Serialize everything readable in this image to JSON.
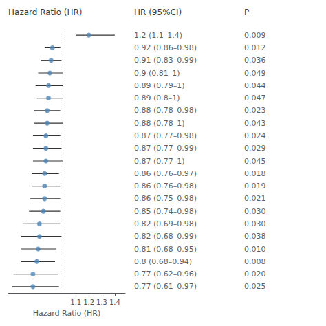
{
  "chart_data": {
    "type": "forest",
    "title": "Hazard Ratio (HR)",
    "x_label": "Hazard Ratio (HR)",
    "values": [
      1.2,
      0.92,
      0.91,
      0.9,
      0.89,
      0.89,
      0.88,
      0.88,
      0.87,
      0.87,
      0.87,
      0.86,
      0.86,
      0.86,
      0.85,
      0.82,
      0.82,
      0.81,
      0.8,
      0.77,
      0.77
    ],
    "ci_lower": [
      1.1,
      0.86,
      0.83,
      0.81,
      0.79,
      0.8,
      0.78,
      0.78,
      0.77,
      0.77,
      0.77,
      0.76,
      0.76,
      0.75,
      0.74,
      0.69,
      0.68,
      0.68,
      0.68,
      0.62,
      0.61
    ],
    "ci_upper": [
      1.4,
      0.98,
      0.99,
      1.0,
      1.0,
      1.0,
      0.98,
      1.0,
      0.98,
      0.99,
      1.0,
      0.97,
      0.98,
      0.98,
      0.98,
      0.98,
      0.99,
      0.95,
      0.94,
      0.96,
      0.97
    ],
    "columns": [
      {
        "header": "HR (95%CI)",
        "values": [
          "1.2 (1.1–1.4)",
          "0.92 (0.86–0.98)",
          "0.91 (0.83–0.99)",
          "0.9 (0.81–1)",
          "0.89 (0.79–1)",
          "0.89 (0.8–1)",
          "0.88 (0.78–0.98)",
          "0.88 (0.78–1)",
          "0.87 (0.77–0.98)",
          "0.87 (0.77–0.99)",
          "0.87 (0.77–1)",
          "0.86 (0.76–0.97)",
          "0.86 (0.76–0.98)",
          "0.86 (0.75–0.98)",
          "0.85 (0.74–0.98)",
          "0.82 (0.69–0.98)",
          "0.82 (0.68–0.99)",
          "0.81 (0.68–0.95)",
          "0.8 (0.68–0.94)",
          "0.77 (0.62–0.96)",
          "0.77 (0.61–0.97)"
        ]
      },
      {
        "header": "P",
        "values": [
          "0.009",
          "0.012",
          "0.036",
          "0.049",
          "0.044",
          "0.047",
          "0.023",
          "0.043",
          "0.024",
          "0.029",
          "0.045",
          "0.018",
          "0.019",
          "0.021",
          "0.030",
          "0.030",
          "0.038",
          "0.010",
          "0.008",
          "0.020",
          "0.025"
        ]
      }
    ],
    "annotations": [
      {
        "x": 1.0,
        "line_style": "dashed"
      }
    ],
    "xlim": [
      0.58,
      1.48
    ],
    "xticks": [
      1.1,
      1.2,
      1.3,
      1.4
    ],
    "color": "#4f86b8",
    "grid": false,
    "tick_labels": "x"
  }
}
